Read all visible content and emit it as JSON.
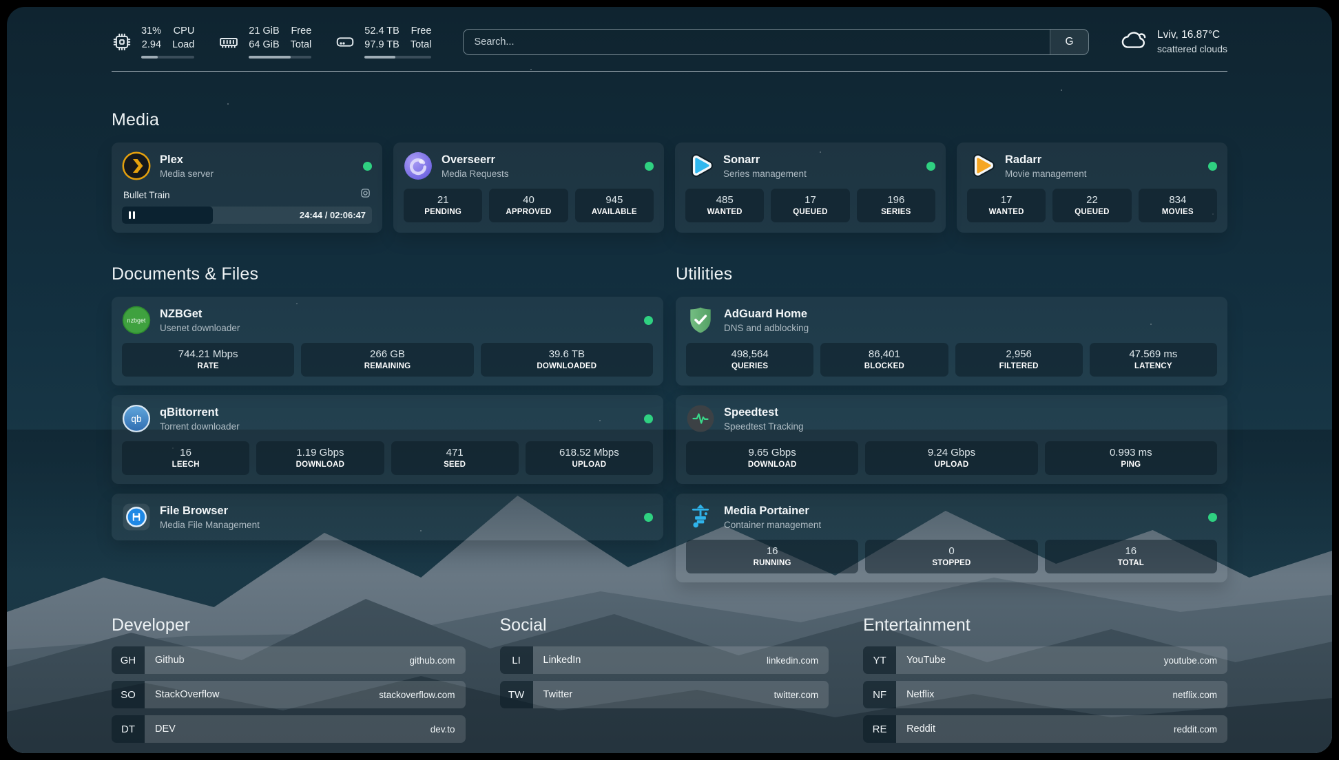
{
  "topbar": {
    "resources": [
      {
        "icon": "cpu-icon",
        "values": [
          "31%",
          "2.94"
        ],
        "labels": [
          "CPU",
          "Load"
        ],
        "progress": 31
      },
      {
        "icon": "memory-icon",
        "values": [
          "21 GiB",
          "64 GiB"
        ],
        "labels": [
          "Free",
          "Total"
        ],
        "progress": 67
      },
      {
        "icon": "disk-icon",
        "values": [
          "52.4 TB",
          "97.9 TB"
        ],
        "labels": [
          "Free",
          "Total"
        ],
        "progress": 46
      }
    ],
    "search": {
      "placeholder": "Search...",
      "button_label": "G"
    },
    "weather": {
      "icon": "cloud-icon",
      "line1": "Lviv, 16.87°C",
      "line2": "scattered clouds"
    }
  },
  "sections": {
    "media": {
      "title": "Media",
      "services": [
        {
          "name": "Plex",
          "subtitle": "Media server",
          "icon": "plex-icon",
          "status": "online",
          "now_playing": {
            "title": "Bullet Train",
            "state": "paused",
            "time": "24:44 / 02:06:47"
          }
        },
        {
          "name": "Overseerr",
          "subtitle": "Media Requests",
          "icon": "overseerr-icon",
          "status": "online",
          "stats": [
            {
              "value": "21",
              "label": "PENDING"
            },
            {
              "value": "40",
              "label": "APPROVED"
            },
            {
              "value": "945",
              "label": "AVAILABLE"
            }
          ]
        },
        {
          "name": "Sonarr",
          "subtitle": "Series management",
          "icon": "sonarr-icon",
          "status": "online",
          "stats": [
            {
              "value": "485",
              "label": "WANTED"
            },
            {
              "value": "17",
              "label": "QUEUED"
            },
            {
              "value": "196",
              "label": "SERIES"
            }
          ]
        },
        {
          "name": "Radarr",
          "subtitle": "Movie management",
          "icon": "radarr-icon",
          "status": "online",
          "stats": [
            {
              "value": "17",
              "label": "WANTED"
            },
            {
              "value": "22",
              "label": "QUEUED"
            },
            {
              "value": "834",
              "label": "MOVIES"
            }
          ]
        }
      ]
    },
    "documents": {
      "title": "Documents & Files",
      "services": [
        {
          "name": "NZBGet",
          "subtitle": "Usenet downloader",
          "icon": "nzbget-icon",
          "status": "online",
          "stats": [
            {
              "value": "744.21 Mbps",
              "label": "RATE"
            },
            {
              "value": "266 GB",
              "label": "REMAINING"
            },
            {
              "value": "39.6 TB",
              "label": "DOWNLOADED"
            }
          ]
        },
        {
          "name": "qBittorrent",
          "subtitle": "Torrent downloader",
          "icon": "qbittorrent-icon",
          "status": "online",
          "stats": [
            {
              "value": "16",
              "label": "LEECH"
            },
            {
              "value": "1.19 Gbps",
              "label": "DOWNLOAD"
            },
            {
              "value": "471",
              "label": "SEED"
            },
            {
              "value": "618.52 Mbps",
              "label": "UPLOAD"
            }
          ]
        },
        {
          "name": "File Browser",
          "subtitle": "Media File Management",
          "icon": "filebrowser-icon",
          "status": "online",
          "stats": []
        }
      ]
    },
    "utilities": {
      "title": "Utilities",
      "services": [
        {
          "name": "AdGuard Home",
          "subtitle": "DNS and adblocking",
          "icon": "adguard-icon",
          "stats": [
            {
              "value": "498,564",
              "label": "QUERIES"
            },
            {
              "value": "86,401",
              "label": "BLOCKED"
            },
            {
              "value": "2,956",
              "label": "FILTERED"
            },
            {
              "value": "47.569 ms",
              "label": "LATENCY"
            }
          ]
        },
        {
          "name": "Speedtest",
          "subtitle": "Speedtest Tracking",
          "icon": "speedtest-icon",
          "stats": [
            {
              "value": "9.65 Gbps",
              "label": "DOWNLOAD"
            },
            {
              "value": "9.24 Gbps",
              "label": "UPLOAD"
            },
            {
              "value": "0.993 ms",
              "label": "PING"
            }
          ]
        },
        {
          "name": "Media Portainer",
          "subtitle": "Container management",
          "icon": "portainer-icon",
          "status": "online",
          "stats": [
            {
              "value": "16",
              "label": "RUNNING"
            },
            {
              "value": "0",
              "label": "STOPPED"
            },
            {
              "value": "16",
              "label": "TOTAL"
            }
          ]
        }
      ]
    }
  },
  "bookmarks": [
    {
      "title": "Developer",
      "links": [
        {
          "abbr": "GH",
          "name": "Github",
          "url": "github.com"
        },
        {
          "abbr": "SO",
          "name": "StackOverflow",
          "url": "stackoverflow.com"
        },
        {
          "abbr": "DT",
          "name": "DEV",
          "url": "dev.to"
        }
      ]
    },
    {
      "title": "Social",
      "links": [
        {
          "abbr": "LI",
          "name": "LinkedIn",
          "url": "linkedin.com"
        },
        {
          "abbr": "TW",
          "name": "Twitter",
          "url": "twitter.com"
        }
      ]
    },
    {
      "title": "Entertainment",
      "links": [
        {
          "abbr": "YT",
          "name": "YouTube",
          "url": "youtube.com"
        },
        {
          "abbr": "NF",
          "name": "Netflix",
          "url": "netflix.com"
        },
        {
          "abbr": "RE",
          "name": "Reddit",
          "url": "reddit.com"
        }
      ]
    }
  ],
  "colors": {
    "status_online": "#2fd181",
    "plex_accent": "#e5a00d",
    "sonarr_accent": "#30b7ee",
    "radarr_accent": "#f5a623",
    "progress_fill": "#9fadb6"
  }
}
